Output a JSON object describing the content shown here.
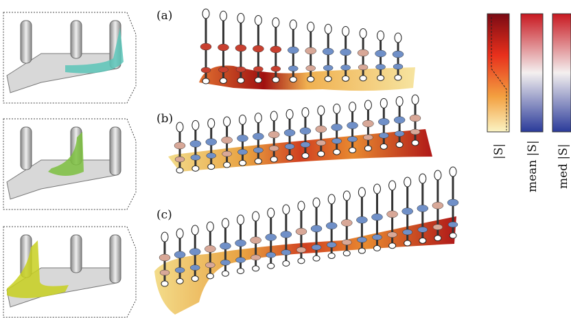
{
  "panels": [
    {
      "label": "(a)"
    },
    {
      "label": "(b)"
    },
    {
      "label": "(c)"
    }
  ],
  "colorbars": [
    {
      "label": "|S|"
    },
    {
      "label": "mean |S|"
    },
    {
      "label": "med |S|"
    }
  ]
}
